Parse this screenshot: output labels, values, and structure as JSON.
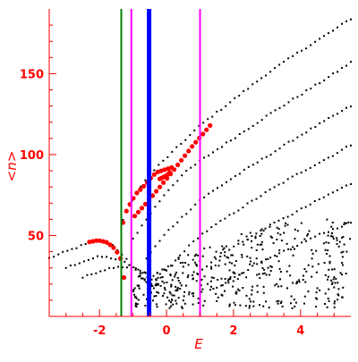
{
  "chart_data": {
    "type": "scatter",
    "title": "",
    "xlabel": "E",
    "ylabel": "<n>",
    "xlim": [
      -3.5,
      5.5
    ],
    "ylim": [
      0,
      190
    ],
    "x_ticks": [
      -2,
      0,
      2,
      4
    ],
    "y_ticks": [
      50,
      100,
      150
    ],
    "x_tick_labels": [
      "-2",
      "0",
      "2",
      "4"
    ],
    "y_tick_labels": [
      "50",
      "100",
      "150"
    ],
    "grid": false,
    "legend": "none",
    "colors": {
      "axes": "#ff0000",
      "spectrum": "#000000",
      "highlight": "#ff0000",
      "line_green": "#008000",
      "line_magenta": "#ff00ff",
      "line_blue": "#0000ff"
    },
    "vertical_lines": [
      {
        "x": -1.35,
        "color": "line_green",
        "weight": "thin"
      },
      {
        "x": -1.05,
        "color": "line_magenta",
        "weight": "thin"
      },
      {
        "x": -0.52,
        "color": "line_blue",
        "weight": "thick"
      },
      {
        "x": 1.0,
        "color": "line_magenta",
        "weight": "thin"
      }
    ],
    "series": [
      {
        "role": "spectrum",
        "style": "small black dots",
        "branches": [
          {
            "x_range": [
              -3.5,
              0.3
            ],
            "trend": [
              [
                -3.5,
                36
              ],
              [
                -3.0,
                40
              ],
              [
                -2.5,
                44
              ],
              [
                -2.0,
                47
              ],
              [
                -1.6,
                44
              ],
              [
                -1.3,
                38
              ],
              [
                -1.0,
                30
              ],
              [
                -0.6,
                22
              ],
              [
                -0.2,
                14
              ],
              [
                0.3,
                8
              ]
            ]
          },
          {
            "x_range": [
              -3.0,
              0.5
            ],
            "trend": [
              [
                -3.0,
                30
              ],
              [
                -2.5,
                34
              ],
              [
                -2.0,
                37
              ],
              [
                -1.6,
                36
              ],
              [
                -1.2,
                33
              ],
              [
                -0.8,
                28
              ],
              [
                -0.4,
                22
              ],
              [
                0.0,
                16
              ],
              [
                0.5,
                10
              ]
            ]
          },
          {
            "x_range": [
              -2.5,
              0.8
            ],
            "trend": [
              [
                -2.5,
                24
              ],
              [
                -2.0,
                28
              ],
              [
                -1.5,
                31
              ],
              [
                -1.0,
                30
              ],
              [
                -0.5,
                26
              ],
              [
                0.0,
                21
              ],
              [
                0.4,
                17
              ],
              [
                0.8,
                12
              ]
            ]
          },
          {
            "x_range": [
              -1.3,
              5.5
            ],
            "trend": [
              [
                -1.3,
                60
              ],
              [
                -0.8,
                80
              ],
              [
                -0.3,
                92
              ],
              [
                0.3,
                104
              ],
              [
                1.0,
                118
              ],
              [
                2.0,
                134
              ],
              [
                3.0,
                150
              ],
              [
                4.0,
                164
              ],
              [
                5.0,
                177
              ],
              [
                5.5,
                184
              ]
            ]
          },
          {
            "x_range": [
              -1.0,
              5.5
            ],
            "trend": [
              [
                -1.0,
                48
              ],
              [
                -0.5,
                63
              ],
              [
                0.0,
                77
              ],
              [
                0.5,
                88
              ],
              [
                1.0,
                96
              ],
              [
                2.0,
                110
              ],
              [
                3.0,
                124
              ],
              [
                4.0,
                137
              ],
              [
                5.0,
                150
              ],
              [
                5.5,
                157
              ]
            ]
          },
          {
            "x_range": [
              -0.6,
              5.5
            ],
            "trend": [
              [
                -0.6,
                36
              ],
              [
                0.0,
                52
              ],
              [
                0.5,
                62
              ],
              [
                1.0,
                72
              ],
              [
                2.0,
                86
              ],
              [
                3.0,
                99
              ],
              [
                4.0,
                112
              ],
              [
                5.0,
                124
              ],
              [
                5.5,
                130
              ]
            ]
          },
          {
            "x_range": [
              0.0,
              5.5
            ],
            "trend": [
              [
                0.0,
                28
              ],
              [
                0.5,
                40
              ],
              [
                1.0,
                50
              ],
              [
                2.0,
                64
              ],
              [
                3.0,
                77
              ],
              [
                4.0,
                89
              ],
              [
                5.0,
                100
              ],
              [
                5.5,
                106
              ]
            ]
          },
          {
            "x_range": [
              0.8,
              5.5
            ],
            "trend": [
              [
                0.8,
                24
              ],
              [
                1.5,
                36
              ],
              [
                2.0,
                43
              ],
              [
                3.0,
                55
              ],
              [
                4.0,
                66
              ],
              [
                5.0,
                77
              ],
              [
                5.5,
                82
              ]
            ]
          },
          {
            "x_range": [
              1.5,
              5.5
            ],
            "trend": [
              [
                1.5,
                18
              ],
              [
                2.5,
                30
              ],
              [
                3.5,
                40
              ],
              [
                4.5,
                50
              ],
              [
                5.5,
                58
              ]
            ]
          },
          {
            "x_range": [
              -1.0,
              5.5
            ],
            "region": "scattered cloud",
            "y_range": [
              5,
              60
            ]
          }
        ]
      },
      {
        "role": "highlight",
        "style": "larger red dots",
        "branches": [
          {
            "trend": [
              [
                -2.3,
                46
              ],
              [
                -2.05,
                47
              ],
              [
                -1.8,
                46
              ],
              [
                -1.6,
                43
              ],
              [
                -1.45,
                39
              ],
              [
                -1.35,
                35
              ],
              [
                -1.3,
                32
              ],
              [
                -1.28,
                28
              ],
              [
                -1.27,
                24
              ]
            ]
          },
          {
            "trend": [
              [
                -1.3,
                58
              ],
              [
                -1.2,
                65
              ],
              [
                -1.05,
                71
              ],
              [
                -0.9,
                76
              ],
              [
                -0.75,
                79
              ],
              [
                -0.6,
                82
              ],
              [
                -0.45,
                86
              ],
              [
                -0.3,
                89
              ],
              [
                -0.15,
                90
              ],
              [
                0.0,
                91
              ],
              [
                0.15,
                92
              ]
            ]
          },
          {
            "trend": [
              [
                -0.95,
                62
              ],
              [
                -0.6,
                70
              ],
              [
                -0.2,
                80
              ],
              [
                0.2,
                90
              ],
              [
                0.5,
                98
              ],
              [
                0.8,
                106
              ],
              [
                1.1,
                113
              ],
              [
                1.3,
                118
              ]
            ]
          },
          {
            "trend": [
              [
                -0.2,
                85
              ],
              [
                0.0,
                87
              ],
              [
                0.1,
                89
              ]
            ]
          }
        ]
      }
    ]
  }
}
